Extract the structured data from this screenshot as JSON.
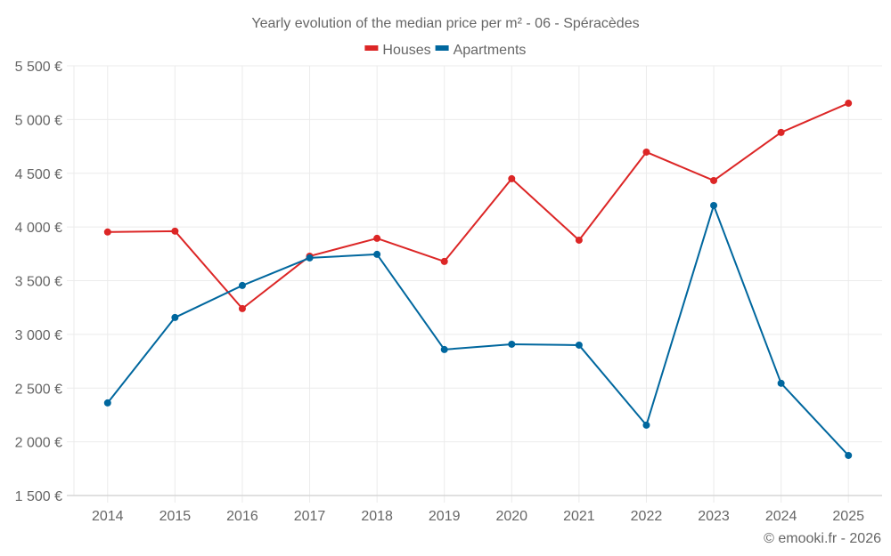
{
  "chart_data": {
    "type": "line",
    "title": "Yearly evolution of the median price per m² - 06 - Spéracèdes",
    "xlabel": "",
    "ylabel": "",
    "categories": [
      "2014",
      "2015",
      "2016",
      "2017",
      "2018",
      "2019",
      "2020",
      "2021",
      "2022",
      "2023",
      "2024",
      "2025"
    ],
    "series": [
      {
        "name": "Houses",
        "color": "#dc2626",
        "values": [
          3953,
          3961,
          3240,
          3728,
          3894,
          3679,
          4449,
          3877,
          4697,
          4432,
          4880,
          5152
        ]
      },
      {
        "name": "Apartments",
        "color": "#00679e",
        "values": [
          2362,
          3157,
          3455,
          3712,
          3745,
          2859,
          2908,
          2900,
          2155,
          4200,
          2545,
          1873
        ]
      }
    ],
    "ylim": [
      1500,
      5500
    ],
    "yticks": [
      1500,
      2000,
      2500,
      3000,
      3500,
      4000,
      4500,
      5000,
      5500
    ],
    "ytick_labels": [
      "1 500 €",
      "2 000 €",
      "2 500 €",
      "3 000 €",
      "3 500 €",
      "4 000 €",
      "4 500 €",
      "5 000 €",
      "5 500 €"
    ],
    "grid": true,
    "legend_position": "top-center",
    "credit": "© emooki.fr - 2026"
  }
}
